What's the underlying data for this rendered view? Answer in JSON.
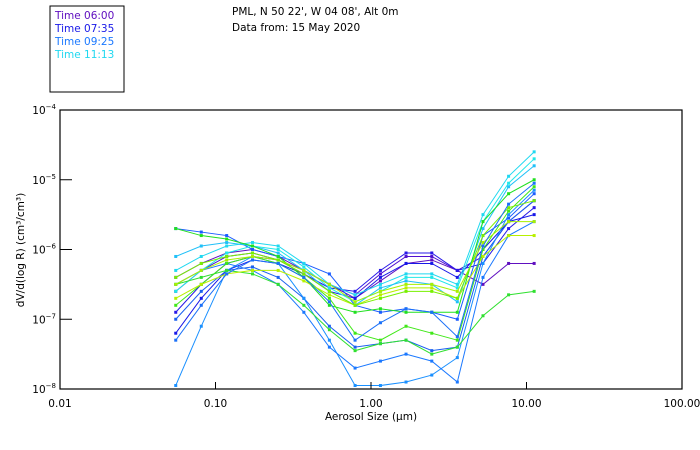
{
  "header": {
    "line1": "PML, N 50 22', W 04 08', Alt 0m",
    "line2": "Data from: 15 May 2020"
  },
  "legend": [
    {
      "label": "Time 06:00",
      "color": "#6010c0"
    },
    {
      "label": "Time 07:35",
      "color": "#1818e8"
    },
    {
      "label": "Time 09:25",
      "color": "#1a78ff"
    },
    {
      "label": "Time 11:13",
      "color": "#20d8f0"
    }
  ],
  "chart_data": {
    "type": "line",
    "title": "PML, N 50 22', W 04 08', Alt 0m — Data from: 15 May 2020",
    "xlabel": "Aerosol Size (µm)",
    "ylabel": "dV/d(log R) (cm³/cm³)",
    "xscale": "log",
    "yscale": "log",
    "xlim": [
      0.01,
      100
    ],
    "ylim": [
      1e-08,
      0.0001
    ],
    "xticks": [
      0.01,
      0.1,
      1,
      10,
      100
    ],
    "xtick_labels": [
      "0.01",
      "0.10",
      "1.00",
      "10.00",
      "100.00"
    ],
    "yticks": [
      0.0001,
      1e-05,
      1e-06,
      1e-07,
      1e-08
    ],
    "ytick_labels": [
      {
        "base": "10",
        "exp": "−4"
      },
      {
        "base": "10",
        "exp": "−5"
      },
      {
        "base": "10",
        "exp": "−6"
      },
      {
        "base": "10",
        "exp": "−7"
      },
      {
        "base": "10",
        "exp": "−8"
      }
    ],
    "grid": false,
    "legend_position": "top-left, outside",
    "x": [
      0.0555,
      0.081,
      0.118,
      0.173,
      0.253,
      0.37,
      0.54,
      0.79,
      1.15,
      1.68,
      2.46,
      3.59,
      5.25,
      7.67,
      11.2
    ],
    "value_format": "log10 of dV/d(log R)",
    "series": [
      {
        "color": "#6010c0",
        "log10_values": [
          -6.4,
          -6.2,
          -6.05,
          -6.0,
          -6.1,
          -6.3,
          -6.5,
          -6.7,
          -6.45,
          -6.2,
          -6.15,
          -6.3,
          -6.5,
          -6.2,
          -6.2
        ]
      },
      {
        "color": "#5010d0",
        "log10_values": [
          -6.6,
          -6.3,
          -6.1,
          -6.05,
          -6.15,
          -6.3,
          -6.5,
          -6.65,
          -6.35,
          -6.1,
          -6.1,
          -6.3,
          -6.1,
          -5.6,
          -5.3
        ]
      },
      {
        "color": "#2818e8",
        "log10_values": [
          -6.9,
          -6.5,
          -6.2,
          -6.1,
          -6.15,
          -6.35,
          -6.55,
          -6.6,
          -6.3,
          -6.05,
          -6.05,
          -6.3,
          -6.2,
          -5.7,
          -5.4
        ]
      },
      {
        "color": "#1818e8",
        "log10_values": [
          -7.2,
          -6.7,
          -6.3,
          -6.15,
          -6.2,
          -6.35,
          -6.6,
          -6.7,
          -6.4,
          -6.2,
          -6.2,
          -6.4,
          -6.0,
          -5.6,
          -5.5
        ]
      },
      {
        "color": "#1a5cff",
        "log10_values": [
          -5.7,
          -5.75,
          -5.8,
          -6.0,
          -6.1,
          -6.2,
          -6.35,
          -6.8,
          -6.9,
          -6.85,
          -6.9,
          -7.0,
          -5.8,
          -5.55,
          -5.2
        ]
      },
      {
        "color": "#1a60f0",
        "log10_values": [
          -7.0,
          -6.6,
          -6.3,
          -6.25,
          -6.4,
          -6.7,
          -7.1,
          -7.4,
          -7.35,
          -7.3,
          -7.45,
          -7.4,
          -6.1,
          -5.6,
          -5.3
        ]
      },
      {
        "color": "#1a90ff",
        "log10_values": [
          -7.95,
          -7.1,
          -6.3,
          -6.1,
          -6.2,
          -6.7,
          -7.3,
          -7.95,
          -7.95,
          -7.9,
          -7.8,
          -7.55,
          -6.2,
          -5.5,
          -5.15
        ]
      },
      {
        "color": "#1a78ff",
        "log10_values": [
          -6.5,
          -6.3,
          -6.2,
          -6.3,
          -6.5,
          -6.9,
          -7.4,
          -7.7,
          -7.6,
          -7.5,
          -7.6,
          -7.9,
          -6.4,
          -5.8,
          -5.6
        ]
      },
      {
        "color": "#20d8f0",
        "log10_values": [
          -6.3,
          -6.1,
          -5.95,
          -5.9,
          -5.95,
          -6.2,
          -6.5,
          -6.65,
          -6.5,
          -6.35,
          -6.35,
          -6.5,
          -5.5,
          -4.95,
          -4.6
        ]
      },
      {
        "color": "#20e8e8",
        "log10_values": [
          -6.6,
          -6.3,
          -6.05,
          -5.95,
          -6.0,
          -6.25,
          -6.55,
          -6.75,
          -6.6,
          -6.4,
          -6.4,
          -6.55,
          -5.6,
          -5.05,
          -4.7
        ]
      },
      {
        "color": "#20c0f8",
        "log10_values": [
          -6.1,
          -5.95,
          -5.9,
          -5.95,
          -6.05,
          -6.3,
          -6.6,
          -6.8,
          -6.55,
          -6.45,
          -6.5,
          -6.75,
          -5.7,
          -5.1,
          -4.8
        ]
      },
      {
        "color": "#20e020",
        "log10_values": [
          -5.7,
          -5.8,
          -5.85,
          -5.95,
          -6.1,
          -6.4,
          -6.8,
          -6.9,
          -6.85,
          -6.9,
          -6.9,
          -6.9,
          -5.6,
          -5.2,
          -5.0
        ]
      },
      {
        "color": "#30e030",
        "log10_values": [
          -6.5,
          -6.4,
          -6.3,
          -6.35,
          -6.5,
          -6.8,
          -7.15,
          -7.45,
          -7.35,
          -7.3,
          -7.5,
          -7.4,
          -6.95,
          -6.65,
          -6.6
        ]
      },
      {
        "color": "#40e818",
        "log10_values": [
          -6.8,
          -6.5,
          -6.2,
          -6.1,
          -6.2,
          -6.4,
          -6.7,
          -7.2,
          -7.3,
          -7.1,
          -7.2,
          -7.3,
          -6.0,
          -5.45,
          -5.1
        ]
      },
      {
        "color": "#a8f000",
        "log10_values": [
          -6.5,
          -6.3,
          -6.15,
          -6.1,
          -6.15,
          -6.3,
          -6.5,
          -6.75,
          -6.6,
          -6.5,
          -6.5,
          -6.6,
          -5.9,
          -5.6,
          -5.6
        ]
      },
      {
        "color": "#b8f000",
        "log10_values": [
          -6.7,
          -6.5,
          -6.35,
          -6.3,
          -6.3,
          -6.45,
          -6.65,
          -6.8,
          -6.65,
          -6.55,
          -6.55,
          -6.7,
          -6.1,
          -5.8,
          -5.8
        ]
      },
      {
        "color": "#78f000",
        "log10_values": [
          -6.4,
          -6.2,
          -6.1,
          -6.05,
          -6.15,
          -6.35,
          -6.6,
          -6.8,
          -6.7,
          -6.6,
          -6.6,
          -6.7,
          -5.8,
          -5.4,
          -5.3
        ]
      },
      {
        "color": "#1a70f8",
        "log10_values": [
          -7.3,
          -6.8,
          -6.35,
          -6.15,
          -6.2,
          -6.4,
          -6.75,
          -7.3,
          -7.05,
          -6.85,
          -6.9,
          -7.25,
          -5.95,
          -5.35,
          -5.05
        ]
      }
    ]
  }
}
